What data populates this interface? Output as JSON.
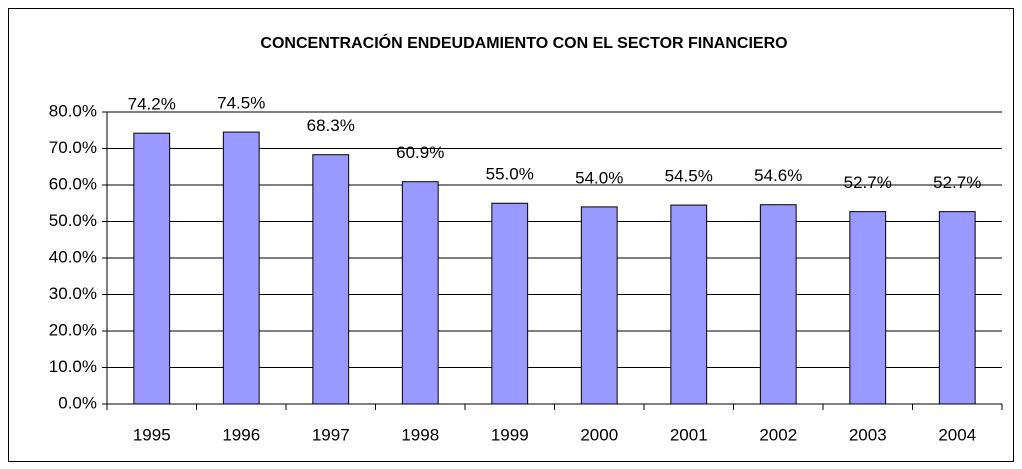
{
  "chart_data": {
    "type": "bar",
    "title": "CONCENTRACIÓN ENDEUDAMIENTO CON EL SECTOR FINANCIERO",
    "categories": [
      "1995",
      "1996",
      "1997",
      "1998",
      "1999",
      "2000",
      "2001",
      "2002",
      "2003",
      "2004"
    ],
    "values": [
      74.2,
      74.5,
      68.3,
      60.9,
      55.0,
      54.0,
      54.5,
      54.6,
      52.7,
      52.7
    ],
    "value_labels": [
      "74.2%",
      "74.5%",
      "68.3%",
      "60.9%",
      "55.0%",
      "54.0%",
      "54.5%",
      "54.6%",
      "52.7%",
      "52.7%"
    ],
    "color": "#9999ff",
    "ylim": [
      0,
      80
    ],
    "yticks": [
      {
        "value": 0,
        "label": "0.0%"
      },
      {
        "value": 10,
        "label": "10.0%"
      },
      {
        "value": 20,
        "label": "20.0%"
      },
      {
        "value": 30,
        "label": "30.0%"
      },
      {
        "value": 40,
        "label": "40.0%"
      },
      {
        "value": 50,
        "label": "50.0%"
      },
      {
        "value": 60,
        "label": "60.0%"
      },
      {
        "value": 70,
        "label": "70.0%"
      },
      {
        "value": 80,
        "label": "80.0%"
      }
    ],
    "grid": true
  }
}
